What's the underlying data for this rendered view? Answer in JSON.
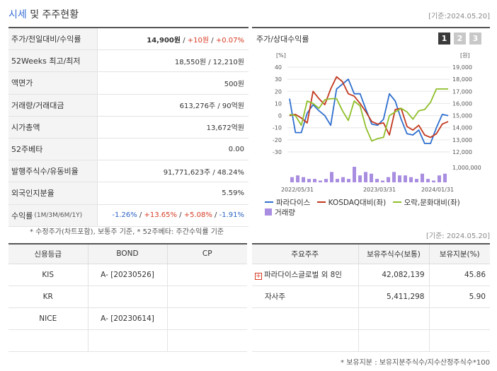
{
  "header": {
    "title_blue": "시세",
    "title_rest": "및 주주현황",
    "date": "[기준:2024.05.20]"
  },
  "info": [
    {
      "label": "주가/전일대비/수익률",
      "price": "14,900원",
      "change": "+10원",
      "ratio": "+0.07%"
    },
    {
      "label": "52Weeks 최고/최저",
      "value": "18,550원 / 12,210원"
    },
    {
      "label": "액면가",
      "value": "500원"
    },
    {
      "label": "거래량/거래대금",
      "value": "613,276주 / 90억원"
    },
    {
      "label": "시가총액",
      "value": "13,672억원"
    },
    {
      "label": "52주베타",
      "value": "0.00"
    },
    {
      "label": "발행주식수/유동비율",
      "value": "91,771,623주 / 48.24%"
    },
    {
      "label": "외국인지분율",
      "value": "5.59%"
    },
    {
      "label": "수익률",
      "label_small": "(1M/3M/6M/1Y)",
      "r1": "-1.26%",
      "r2": "+13.65%",
      "r3": "+5.08%",
      "r4": "-1.91%"
    }
  ],
  "footnote_left": "* 수정주가(차트포함), 보통주 기준, * 52주베타: 주간수익률 기준",
  "chart_panel": {
    "title": "주가/상대수익률",
    "tabs": [
      "1",
      "2",
      "3"
    ]
  },
  "chart_data": {
    "type": "line",
    "left_axis_unit": "[%]",
    "right_axis_unit": "[원]",
    "left_ticks": [
      "40",
      "30",
      "20",
      "10",
      "0",
      "-10",
      "-20",
      "-30"
    ],
    "right_ticks": [
      "19,000",
      "18,000",
      "17,000",
      "16,000",
      "15,000",
      "14,000",
      "13,000",
      "12,000"
    ],
    "volume_tick": "1,000,000",
    "x_ticks": [
      "2022/05/31",
      "2023/03/31",
      "2024/01/31"
    ],
    "ylim_left": [
      -30,
      40
    ],
    "ylim_right": [
      12000,
      19000
    ],
    "series": [
      {
        "name": "파라다이스",
        "color": "#2f6fce",
        "values": [
          14,
          -14,
          -14,
          2,
          9,
          4,
          0,
          -8,
          22,
          26,
          30,
          18,
          18,
          5,
          -7,
          -8,
          -3,
          18,
          12,
          -3,
          -15,
          -16,
          -12,
          -23,
          -23,
          -10,
          1,
          0
        ]
      },
      {
        "name": "KOSDAQ대비(좌)",
        "color": "#c2381e",
        "values": [
          0,
          1,
          -2,
          -6,
          20,
          14,
          9,
          22,
          32,
          28,
          18,
          16,
          10,
          3,
          -5,
          -7,
          -6,
          -16,
          5,
          6,
          -9,
          -12,
          -8,
          -16,
          -18,
          -15,
          -7,
          -5
        ]
      },
      {
        "name": "오락,문화대비(좌)",
        "color": "#8fbf2a",
        "values": [
          1,
          0,
          -8,
          12,
          10,
          6,
          13,
          14,
          14,
          4,
          -4,
          12,
          8,
          -10,
          -21,
          -19,
          -18,
          0,
          3,
          6,
          3,
          -3,
          4,
          5,
          11,
          22,
          22,
          22
        ]
      }
    ],
    "volume": {
      "name": "거래량",
      "color": "#a98de0",
      "values": [
        3,
        4,
        3,
        2,
        2,
        1,
        2,
        6,
        2,
        3,
        2,
        9,
        4,
        6,
        5,
        2,
        1,
        3,
        6,
        4,
        4,
        3,
        2,
        5,
        2,
        1,
        4,
        5
      ]
    }
  },
  "date_right": "[기준: 2024.05.20]",
  "credit": {
    "headers": [
      "신용등급",
      "BOND",
      "CP"
    ],
    "rows": [
      [
        "KIS",
        "A-  [20230526]",
        ""
      ],
      [
        "KR",
        "",
        ""
      ],
      [
        "NICE",
        "A-  [20230614]",
        ""
      ],
      [
        "",
        "",
        ""
      ]
    ]
  },
  "holders": {
    "headers": [
      "주요주주",
      "보유주식수(보통)",
      "보유지분(%)"
    ],
    "rows": [
      {
        "name": "파라다이스글로벌 외 8인",
        "shares": "42,082,139",
        "pct": "45.86",
        "expand": true
      },
      {
        "name": "자사주",
        "shares": "5,411,298",
        "pct": "5.90",
        "expand": false
      },
      {
        "name": "",
        "shares": "",
        "pct": ""
      },
      {
        "name": "",
        "shares": "",
        "pct": ""
      }
    ]
  },
  "footnote_right": "* 보유지분 : 보유지분주식수/지수산정주식수*100"
}
